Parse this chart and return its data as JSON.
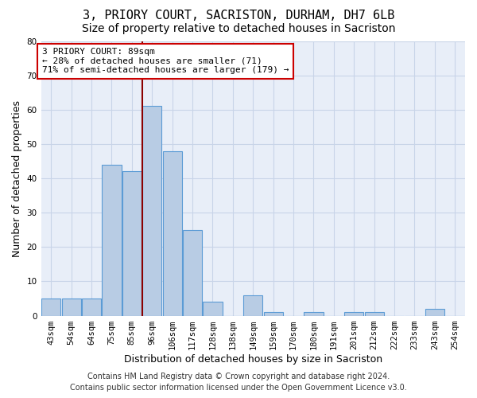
{
  "title": "3, PRIORY COURT, SACRISTON, DURHAM, DH7 6LB",
  "subtitle": "Size of property relative to detached houses in Sacriston",
  "xlabel": "Distribution of detached houses by size in Sacriston",
  "ylabel": "Number of detached properties",
  "categories": [
    "43sqm",
    "54sqm",
    "64sqm",
    "75sqm",
    "85sqm",
    "96sqm",
    "106sqm",
    "117sqm",
    "128sqm",
    "138sqm",
    "149sqm",
    "159sqm",
    "170sqm",
    "180sqm",
    "191sqm",
    "201sqm",
    "212sqm",
    "222sqm",
    "233sqm",
    "243sqm",
    "254sqm"
  ],
  "values": [
    5,
    5,
    5,
    44,
    42,
    61,
    48,
    25,
    4,
    0,
    6,
    1,
    0,
    1,
    0,
    1,
    1,
    0,
    0,
    2,
    0
  ],
  "bar_color": "#b8cce4",
  "bar_edge_color": "#5b9bd5",
  "annotation_text": "3 PRIORY COURT: 89sqm\n← 28% of detached houses are smaller (71)\n71% of semi-detached houses are larger (179) →",
  "annotation_box_color": "#ffffff",
  "annotation_box_edge": "#cc0000",
  "vline_color": "#8b0000",
  "vline_x": 4.5,
  "ylim": [
    0,
    80
  ],
  "yticks": [
    0,
    10,
    20,
    30,
    40,
    50,
    60,
    70,
    80
  ],
  "grid_color": "#c8d4e8",
  "background_color": "#e8eef8",
  "footer_line1": "Contains HM Land Registry data © Crown copyright and database right 2024.",
  "footer_line2": "Contains public sector information licensed under the Open Government Licence v3.0.",
  "title_fontsize": 11,
  "subtitle_fontsize": 10,
  "label_fontsize": 9,
  "tick_fontsize": 7.5,
  "annotation_fontsize": 8,
  "footer_fontsize": 7
}
